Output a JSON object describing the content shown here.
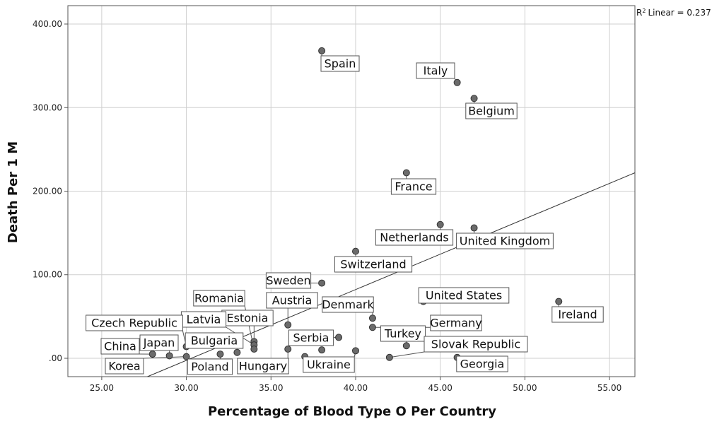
{
  "chart_data": {
    "type": "scatter",
    "xlabel": "Percentage of Blood Type O Per Country",
    "ylabel": "Death Per 1 M",
    "xlim": [
      23,
      56.5
    ],
    "ylim": [
      -22,
      422
    ],
    "x_ticks": [
      "25.00",
      "30.00",
      "35.00",
      "40.00",
      "45.00",
      "50.00",
      "55.00"
    ],
    "x_tick_values": [
      25,
      30,
      35,
      40,
      45,
      50,
      55
    ],
    "y_ticks": [
      ".00",
      "100.00",
      "200.00",
      "300.00",
      "400.00"
    ],
    "y_tick_values": [
      0,
      100,
      200,
      300,
      400
    ],
    "grid": true,
    "fit_line": {
      "label": "Linear = 0.237",
      "r2": 0.237,
      "x": [
        27.7,
        56.5
      ],
      "y": [
        -22,
        222
      ]
    },
    "points": [
      {
        "name": "Spain",
        "x": 38,
        "y": 368
      },
      {
        "name": "Italy",
        "x": 46,
        "y": 330
      },
      {
        "name": "Belgium",
        "x": 47,
        "y": 311
      },
      {
        "name": "France",
        "x": 43,
        "y": 222
      },
      {
        "name": "Netherlands",
        "x": 45,
        "y": 160
      },
      {
        "name": "United Kingdom",
        "x": 47,
        "y": 156
      },
      {
        "name": "Switzerland",
        "x": 40,
        "y": 128
      },
      {
        "name": "Sweden",
        "x": 38,
        "y": 90
      },
      {
        "name": "Ireland",
        "x": 52,
        "y": 68
      },
      {
        "name": "United States",
        "x": 44,
        "y": 68
      },
      {
        "name": "Denmark",
        "x": 41,
        "y": 48
      },
      {
        "name": "Austria",
        "x": 36,
        "y": 40
      },
      {
        "name": "Germany",
        "x": 41,
        "y": 37
      },
      {
        "name": "Turkey",
        "x": 43,
        "y": 15
      },
      {
        "name": "Serbia",
        "x": 39,
        "y": 25
      },
      {
        "name": "Estonia",
        "x": 34,
        "y": 20
      },
      {
        "name": "Latvia",
        "x": 34,
        "y": 16
      },
      {
        "name": "Romania",
        "x": 34,
        "y": 11
      },
      {
        "name": "Czech Republic",
        "x": 30,
        "y": 14
      },
      {
        "name": "Bulgaria",
        "x": 33,
        "y": 7
      },
      {
        "name": "Slovak Republic",
        "x": 42,
        "y": 1
      },
      {
        "name": "Georgia",
        "x": 46,
        "y": 1
      },
      {
        "name": "Ukraine",
        "x": 40,
        "y": 9
      },
      {
        "name": "Hungary",
        "x": 36,
        "y": 11
      },
      {
        "name": "Poland",
        "x": 32,
        "y": 5
      },
      {
        "name": "Japan",
        "x": 29,
        "y": 3
      },
      {
        "name": "Korea",
        "x": 30,
        "y": 2
      },
      {
        "name": "China",
        "x": 28,
        "y": 5
      },
      {
        "name": "",
        "x": 37,
        "y": 2
      },
      {
        "name": "",
        "x": 38,
        "y": 10
      }
    ]
  }
}
